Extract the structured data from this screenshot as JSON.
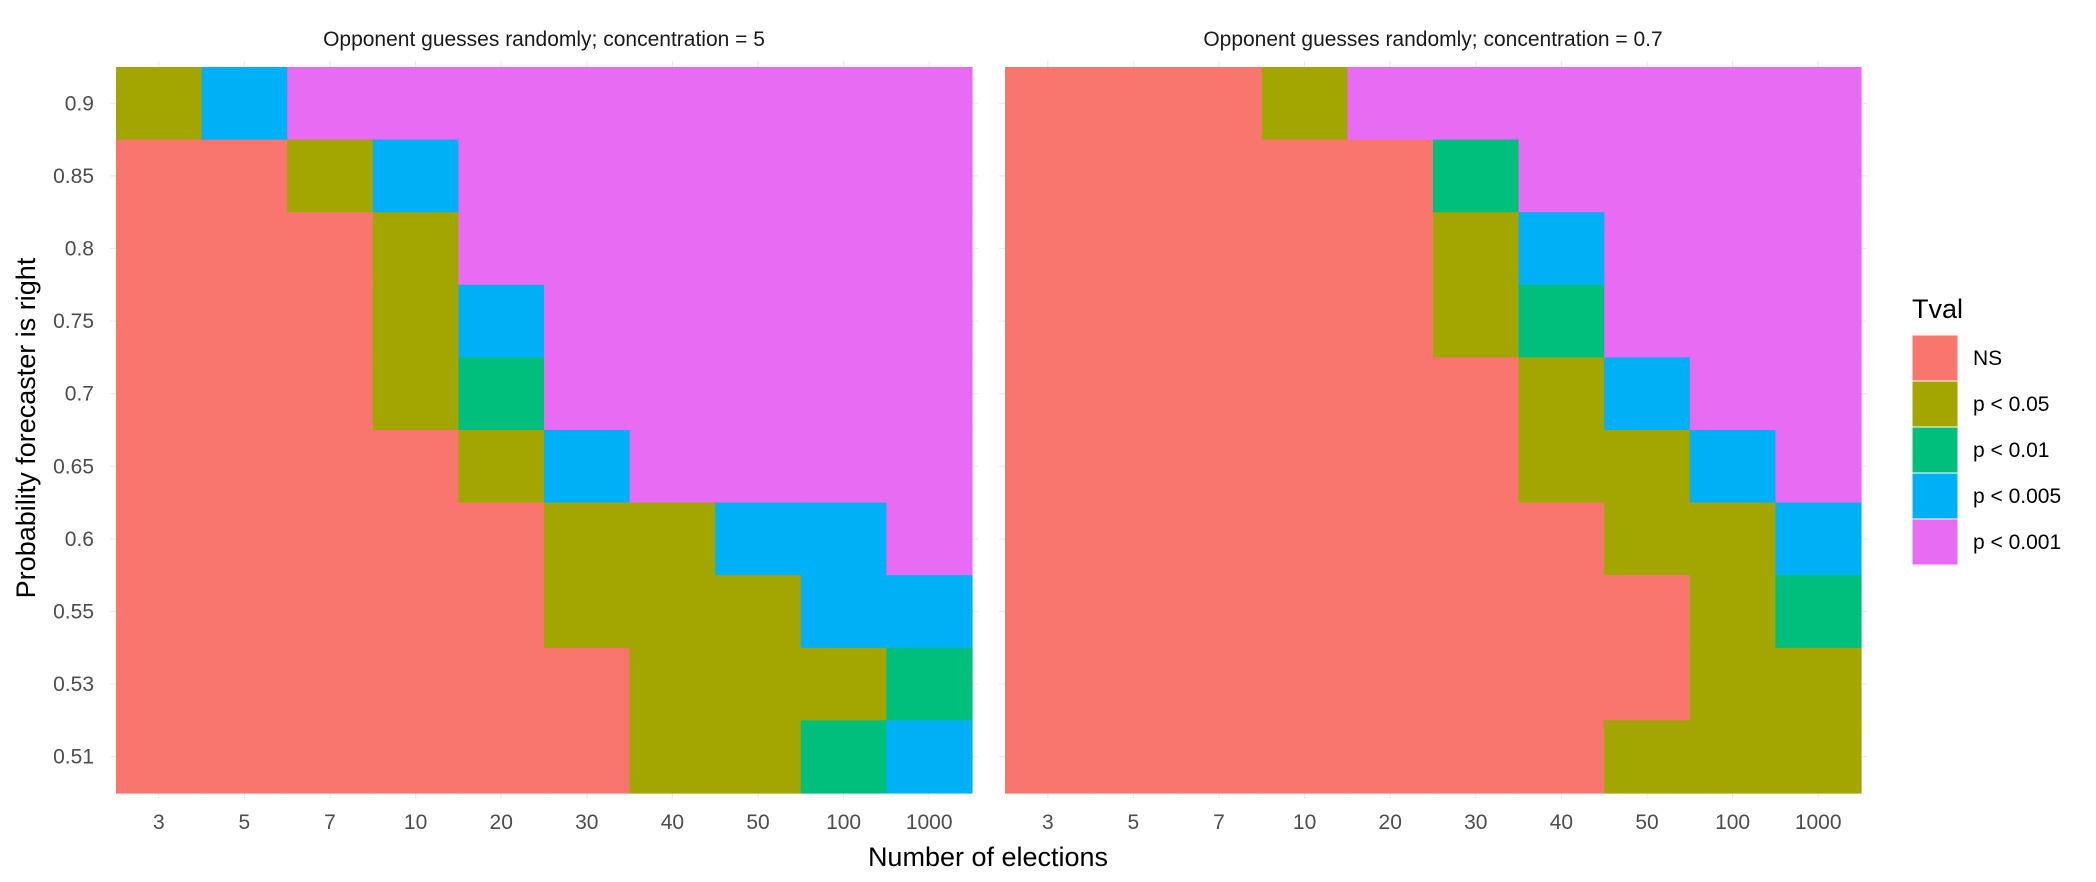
{
  "chart_data": {
    "type": "heatmap",
    "xlabel": "Number of elections",
    "ylabel": "Probability forecaster is right",
    "x_categories": [
      "3",
      "5",
      "7",
      "10",
      "20",
      "30",
      "40",
      "50",
      "100",
      "1000"
    ],
    "y_categories": [
      "0.51",
      "0.53",
      "0.55",
      "0.6",
      "0.65",
      "0.7",
      "0.75",
      "0.8",
      "0.85",
      "0.9"
    ],
    "grid": true,
    "legend": {
      "title": "Tval",
      "placement": "right",
      "levels": [
        {
          "key": "NS",
          "label": "NS",
          "color": "#F8766D"
        },
        {
          "key": "p05",
          "label": "p < 0.05",
          "color": "#A3A500"
        },
        {
          "key": "p01",
          "label": "p < 0.01",
          "color": "#00BF7D"
        },
        {
          "key": "p005",
          "label": "p < 0.005",
          "color": "#00B0F6"
        },
        {
          "key": "p001",
          "label": "p < 0.001",
          "color": "#E76BF3"
        }
      ]
    },
    "panels": [
      {
        "title": "Opponent guesses randomly; concentration = 5",
        "rows": [
          {
            "y": "0.9",
            "values": [
              "p05",
              "p005",
              "p001",
              "p001",
              "p001",
              "p001",
              "p001",
              "p001",
              "p001",
              "p001"
            ]
          },
          {
            "y": "0.85",
            "values": [
              "NS",
              "NS",
              "p05",
              "p005",
              "p001",
              "p001",
              "p001",
              "p001",
              "p001",
              "p001"
            ]
          },
          {
            "y": "0.8",
            "values": [
              "NS",
              "NS",
              "NS",
              "p05",
              "p001",
              "p001",
              "p001",
              "p001",
              "p001",
              "p001"
            ]
          },
          {
            "y": "0.75",
            "values": [
              "NS",
              "NS",
              "NS",
              "p05",
              "p005",
              "p001",
              "p001",
              "p001",
              "p001",
              "p001"
            ]
          },
          {
            "y": "0.7",
            "values": [
              "NS",
              "NS",
              "NS",
              "p05",
              "p01",
              "p001",
              "p001",
              "p001",
              "p001",
              "p001"
            ]
          },
          {
            "y": "0.65",
            "values": [
              "NS",
              "NS",
              "NS",
              "NS",
              "p05",
              "p005",
              "p001",
              "p001",
              "p001",
              "p001"
            ]
          },
          {
            "y": "0.6",
            "values": [
              "NS",
              "NS",
              "NS",
              "NS",
              "NS",
              "p05",
              "p05",
              "p005",
              "p005",
              "p001"
            ]
          },
          {
            "y": "0.55",
            "values": [
              "NS",
              "NS",
              "NS",
              "NS",
              "NS",
              "p05",
              "p05",
              "p05",
              "p005",
              "p005"
            ]
          },
          {
            "y": "0.53",
            "values": [
              "NS",
              "NS",
              "NS",
              "NS",
              "NS",
              "NS",
              "p05",
              "p05",
              "p05",
              "p01"
            ]
          },
          {
            "y": "0.51",
            "values": [
              "NS",
              "NS",
              "NS",
              "NS",
              "NS",
              "NS",
              "p05",
              "p05",
              "p01",
              "p005"
            ]
          }
        ]
      },
      {
        "title": "Opponent guesses randomly; concentration = 0.7",
        "rows": [
          {
            "y": "0.9",
            "values": [
              "NS",
              "NS",
              "NS",
              "p05",
              "p001",
              "p001",
              "p001",
              "p001",
              "p001",
              "p001"
            ]
          },
          {
            "y": "0.85",
            "values": [
              "NS",
              "NS",
              "NS",
              "NS",
              "NS",
              "p01",
              "p001",
              "p001",
              "p001",
              "p001"
            ]
          },
          {
            "y": "0.8",
            "values": [
              "NS",
              "NS",
              "NS",
              "NS",
              "NS",
              "p05",
              "p005",
              "p001",
              "p001",
              "p001"
            ]
          },
          {
            "y": "0.75",
            "values": [
              "NS",
              "NS",
              "NS",
              "NS",
              "NS",
              "p05",
              "p01",
              "p001",
              "p001",
              "p001"
            ]
          },
          {
            "y": "0.7",
            "values": [
              "NS",
              "NS",
              "NS",
              "NS",
              "NS",
              "NS",
              "p05",
              "p005",
              "p001",
              "p001"
            ]
          },
          {
            "y": "0.65",
            "values": [
              "NS",
              "NS",
              "NS",
              "NS",
              "NS",
              "NS",
              "p05",
              "p05",
              "p005",
              "p001"
            ]
          },
          {
            "y": "0.6",
            "values": [
              "NS",
              "NS",
              "NS",
              "NS",
              "NS",
              "NS",
              "NS",
              "p05",
              "p05",
              "p005"
            ]
          },
          {
            "y": "0.55",
            "values": [
              "NS",
              "NS",
              "NS",
              "NS",
              "NS",
              "NS",
              "NS",
              "NS",
              "p05",
              "p01"
            ]
          },
          {
            "y": "0.53",
            "values": [
              "NS",
              "NS",
              "NS",
              "NS",
              "NS",
              "NS",
              "NS",
              "NS",
              "p05",
              "p05"
            ]
          },
          {
            "y": "0.51",
            "values": [
              "NS",
              "NS",
              "NS",
              "NS",
              "NS",
              "NS",
              "NS",
              "p05",
              "p05",
              "p05"
            ]
          }
        ]
      }
    ]
  }
}
